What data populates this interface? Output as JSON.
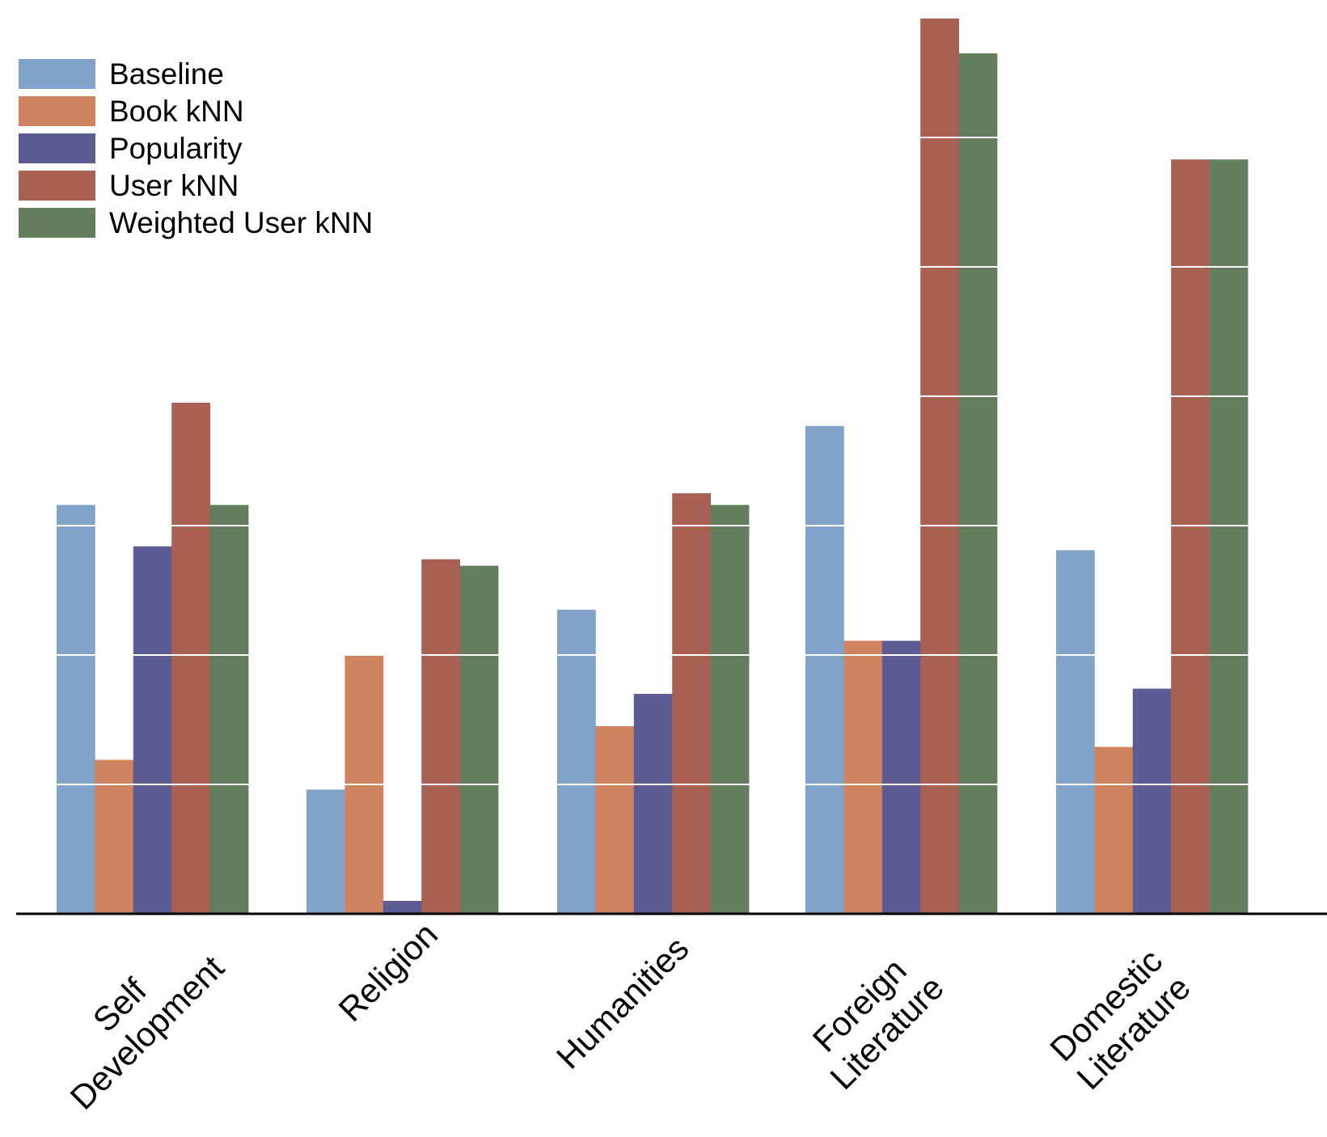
{
  "chart_data": {
    "type": "bar",
    "title": "",
    "xlabel": "",
    "ylabel": "",
    "categories": [
      [
        "Self",
        "Development"
      ],
      [
        "Religion"
      ],
      [
        "Humanities"
      ],
      [
        "Foreign",
        "Literature"
      ],
      [
        "Domestic",
        "Literature"
      ]
    ],
    "series": [
      {
        "name": "Baseline",
        "color": "#82a3c9",
        "values": [
          3.16,
          0.96,
          2.35,
          3.77,
          2.81
        ]
      },
      {
        "name": "Book kNN",
        "color": "#d08360",
        "values": [
          1.19,
          2.0,
          1.45,
          2.11,
          1.29
        ]
      },
      {
        "name": "Popularity",
        "color": "#5c5b94",
        "values": [
          2.84,
          0.1,
          1.7,
          2.11,
          1.74
        ]
      },
      {
        "name": "User kNN",
        "color": "#a86052",
        "values": [
          3.95,
          2.74,
          3.25,
          6.92,
          5.83
        ]
      },
      {
        "name": "Weighted User kNN",
        "color": "#627e5c",
        "values": [
          3.16,
          2.69,
          3.16,
          6.65,
          5.83
        ]
      }
    ],
    "ylim": [
      0,
      7
    ],
    "gridlines": [
      1,
      2,
      3,
      4,
      5,
      6
    ],
    "grid": true,
    "legend": "top-left"
  }
}
